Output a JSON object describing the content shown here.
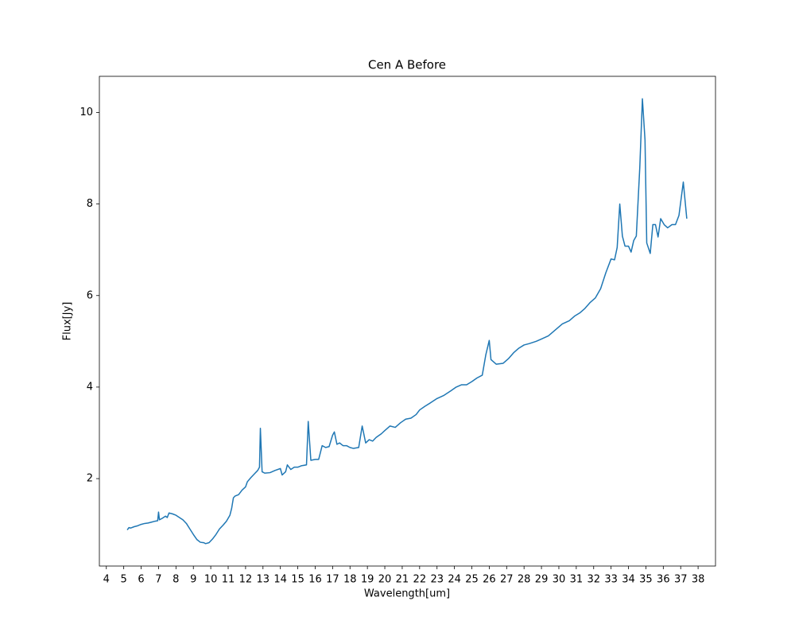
{
  "chart_data": {
    "type": "line",
    "title": "Cen A Before",
    "x_label": "Wavelength[um]",
    "y_label": "Flux[Jy]",
    "xlim": [
      3.6,
      39.0
    ],
    "ylim": [
      0.09,
      10.79
    ],
    "xticks": [
      4,
      5,
      6,
      7,
      8,
      9,
      10,
      11,
      12,
      13,
      14,
      15,
      16,
      17,
      18,
      19,
      20,
      21,
      22,
      23,
      24,
      25,
      26,
      27,
      28,
      29,
      30,
      31,
      32,
      33,
      34,
      35,
      36,
      37,
      38
    ],
    "yticks": [
      2,
      4,
      6,
      8,
      10
    ],
    "grid": false,
    "series": [
      {
        "name": "Cen A",
        "color": "#1f77b4",
        "x": [
          5.2,
          5.3,
          5.4,
          5.6,
          5.8,
          6.0,
          6.2,
          6.4,
          6.6,
          6.8,
          6.95,
          7.0,
          7.05,
          7.2,
          7.4,
          7.5,
          7.6,
          7.8,
          8.0,
          8.2,
          8.4,
          8.6,
          8.8,
          9.0,
          9.2,
          9.4,
          9.6,
          9.7,
          9.9,
          10.1,
          10.3,
          10.5,
          10.7,
          10.9,
          11.1,
          11.2,
          11.3,
          11.4,
          11.6,
          11.8,
          12.0,
          12.1,
          12.3,
          12.5,
          12.7,
          12.8,
          12.85,
          12.95,
          13.1,
          13.4,
          13.7,
          14.0,
          14.1,
          14.3,
          14.4,
          14.6,
          14.8,
          15.0,
          15.2,
          15.5,
          15.6,
          15.75,
          16.0,
          16.2,
          16.4,
          16.6,
          16.8,
          17.0,
          17.1,
          17.25,
          17.4,
          17.6,
          17.8,
          18.0,
          18.2,
          18.5,
          18.7,
          18.9,
          19.1,
          19.3,
          19.5,
          19.8,
          20.0,
          20.3,
          20.6,
          20.9,
          21.2,
          21.5,
          21.8,
          22.0,
          22.3,
          22.6,
          23.0,
          23.4,
          23.8,
          24.1,
          24.4,
          24.7,
          25.0,
          25.3,
          25.6,
          25.8,
          26.0,
          26.1,
          26.4,
          26.8,
          27.1,
          27.4,
          27.7,
          28.0,
          28.3,
          28.7,
          29.0,
          29.4,
          29.8,
          30.2,
          30.6,
          30.9,
          31.2,
          31.5,
          31.8,
          32.1,
          32.4,
          32.7,
          33.0,
          33.2,
          33.35,
          33.5,
          33.65,
          33.8,
          34.0,
          34.15,
          34.3,
          34.45,
          34.65,
          34.8,
          34.95,
          35.05,
          35.25,
          35.4,
          35.55,
          35.7,
          35.85,
          36.05,
          36.25,
          36.5,
          36.7,
          36.9,
          37.15,
          37.35
        ],
        "values": [
          0.88,
          0.93,
          0.92,
          0.95,
          0.97,
          1.0,
          1.02,
          1.03,
          1.05,
          1.07,
          1.08,
          1.27,
          1.1,
          1.13,
          1.18,
          1.15,
          1.25,
          1.23,
          1.2,
          1.15,
          1.1,
          1.02,
          0.9,
          0.78,
          0.67,
          0.61,
          0.6,
          0.58,
          0.6,
          0.68,
          0.78,
          0.9,
          0.98,
          1.07,
          1.2,
          1.35,
          1.58,
          1.62,
          1.65,
          1.75,
          1.82,
          1.93,
          2.02,
          2.1,
          2.18,
          2.25,
          3.1,
          2.15,
          2.12,
          2.13,
          2.18,
          2.22,
          2.08,
          2.15,
          2.3,
          2.2,
          2.25,
          2.25,
          2.28,
          2.3,
          3.25,
          2.4,
          2.42,
          2.42,
          2.72,
          2.68,
          2.7,
          2.95,
          3.02,
          2.75,
          2.78,
          2.72,
          2.72,
          2.68,
          2.66,
          2.68,
          3.15,
          2.78,
          2.85,
          2.82,
          2.9,
          2.98,
          3.05,
          3.15,
          3.12,
          3.22,
          3.3,
          3.32,
          3.4,
          3.5,
          3.58,
          3.65,
          3.75,
          3.82,
          3.92,
          4.0,
          4.05,
          4.05,
          4.12,
          4.2,
          4.26,
          4.7,
          5.02,
          4.6,
          4.5,
          4.52,
          4.62,
          4.75,
          4.85,
          4.92,
          4.95,
          5.0,
          5.05,
          5.12,
          5.25,
          5.38,
          5.45,
          5.55,
          5.62,
          5.72,
          5.85,
          5.95,
          6.15,
          6.5,
          6.8,
          6.78,
          7.05,
          8.0,
          7.3,
          7.08,
          7.08,
          6.95,
          7.2,
          7.3,
          8.8,
          10.3,
          9.4,
          7.15,
          6.92,
          7.55,
          7.55,
          7.28,
          7.68,
          7.55,
          7.48,
          7.55,
          7.55,
          7.75,
          8.48,
          7.68
        ]
      }
    ]
  }
}
